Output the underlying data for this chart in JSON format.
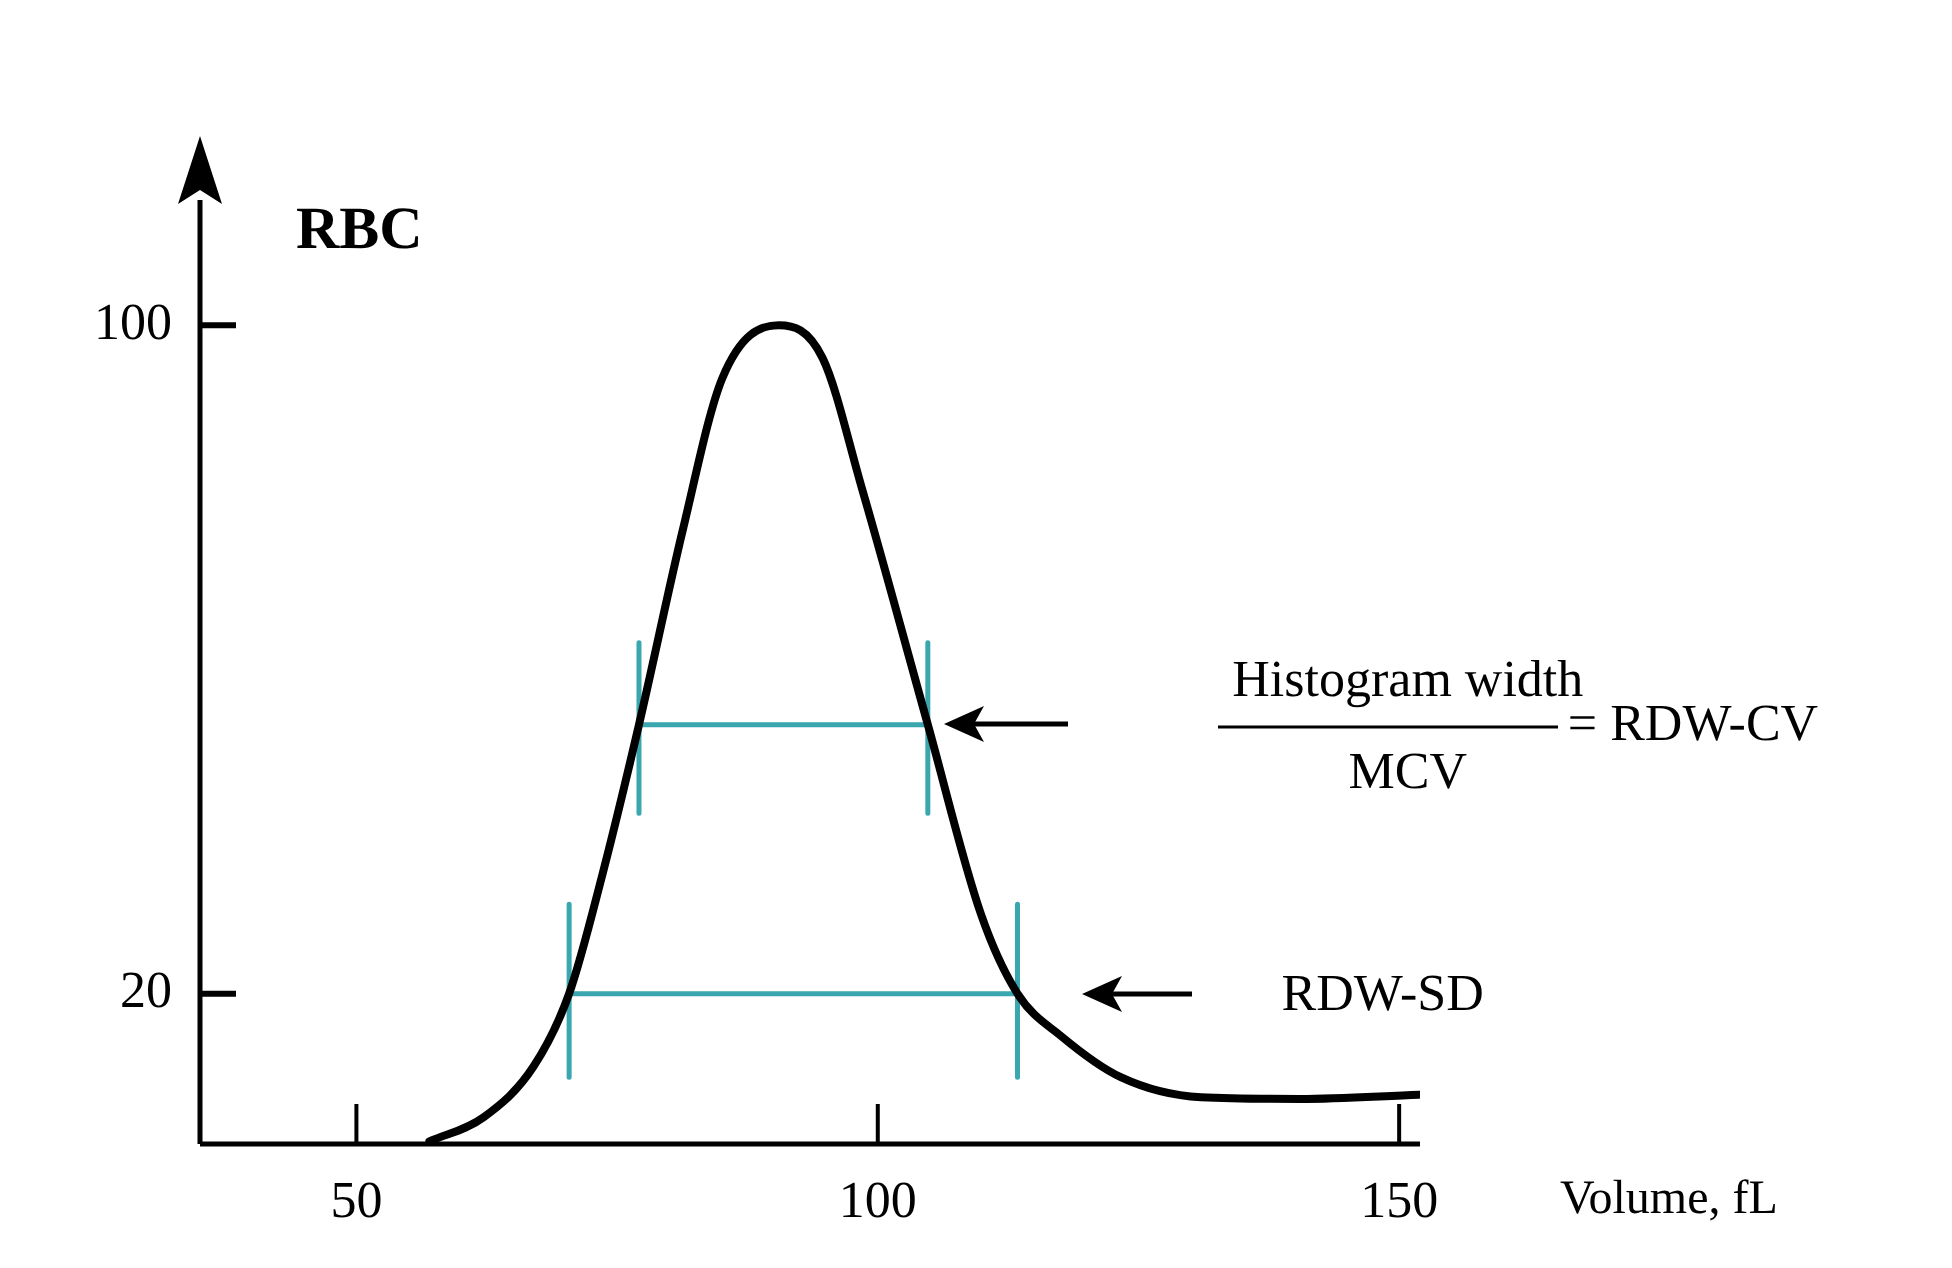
{
  "chart_data": {
    "type": "line",
    "xlabel": "Volume, fL",
    "ylabel": "RBC",
    "xlim": [
      35,
      152
    ],
    "ylim": [
      2,
      115
    ],
    "xticks": [
      50,
      100,
      150
    ],
    "yticks": [
      100,
      20
    ],
    "grid": false,
    "legend": false,
    "marker": "none",
    "line_style": "solid",
    "series": [
      {
        "color": "#000000",
        "x": [
          57,
          62.2,
          67,
          70.4,
          73.6,
          77.1,
          81.3,
          85.1,
          90.5,
          94.7,
          98.5,
          104.8,
          109.9,
          113.4,
          117.6,
          123.3,
          131,
          140.5,
          151.9
        ],
        "values": [
          2.3,
          5.2,
          11.3,
          20,
          34.3,
          52.2,
          75.5,
          93.7,
          100,
          96.1,
          80.4,
          52.2,
          29.5,
          20,
          14.9,
          10,
          7.6,
          7.4,
          7.9
        ]
      },
      {
        "color": "#3aa6b0",
        "x": [
          77.1,
          77.1,
          77.1,
          104.8,
          104.8,
          104.8
        ],
        "values": [
          62,
          41.6,
          52.2,
          52.2,
          62,
          41.6
        ]
      },
      {
        "color": "#3aa6b0",
        "x": [
          70.4,
          70.4,
          70.4,
          113.4,
          113.4,
          113.4
        ],
        "values": [
          30.7,
          10,
          20,
          20,
          30.7,
          10
        ]
      }
    ],
    "annotations": [
      "Histogram width",
      "MCV",
      "= RDW-CV",
      "RDW-SD"
    ]
  }
}
